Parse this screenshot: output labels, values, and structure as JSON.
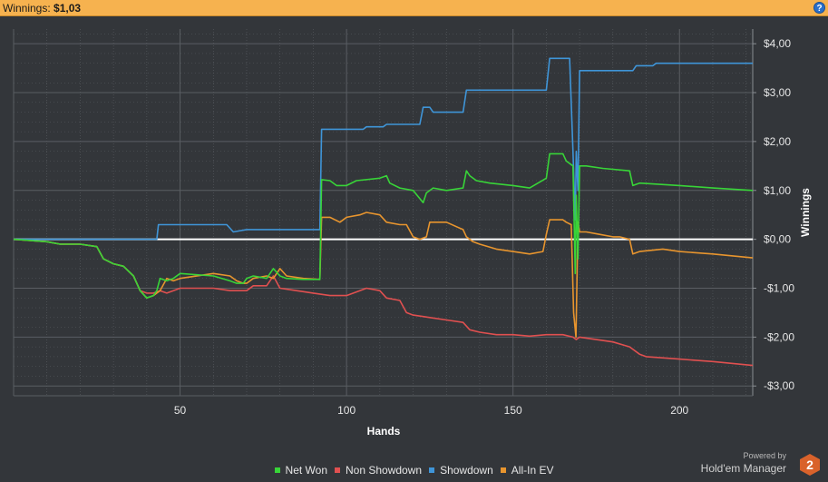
{
  "header": {
    "winnings_label": "Winnings:",
    "winnings_value": "$1,03",
    "help_icon": "question-icon",
    "help_label": "?"
  },
  "colors": {
    "net_won": "#38d438",
    "non_showdown": "#e05050",
    "showdown": "#3f95d8",
    "all_in_ev": "#e8952e",
    "zero_line": "#ffffff",
    "grid": "#5a5e63",
    "background": "#33363a"
  },
  "brand": {
    "powered_by": "Powered by",
    "name": "Hold'em Manager",
    "logo_icon": "holdem-manager-logo-icon",
    "logo_text": "2"
  },
  "chart_data": {
    "type": "line",
    "xlabel": "Hands",
    "ylabel": "Winnings",
    "xlim": [
      0,
      222
    ],
    "ylim": [
      -3.2,
      4.3
    ],
    "x_ticks": [
      50,
      100,
      150,
      200
    ],
    "x_tick_labels": [
      "50",
      "100",
      "150",
      "200"
    ],
    "y_ticks": [
      4,
      3,
      2,
      1,
      0,
      -1,
      -2,
      -3
    ],
    "y_tick_labels": [
      "$4,00",
      "$3,00",
      "$2,00",
      "$1,00",
      "$0,00",
      "-$1,00",
      "-$2,00",
      "-$3,00"
    ],
    "grid": true,
    "legend_position": "bottom-center",
    "series": [
      {
        "name": "Net Won",
        "x": [
          0,
          10,
          14,
          20,
          25,
          27,
          30,
          33,
          36,
          38,
          40,
          42,
          43,
          44,
          46,
          48,
          50,
          60,
          65,
          67,
          69,
          70,
          72,
          76,
          78,
          80,
          82,
          87,
          92,
          92.5,
          95,
          97,
          100,
          103,
          110,
          112,
          113,
          116,
          120,
          123,
          124,
          126,
          130,
          135,
          136,
          137,
          139,
          143,
          150,
          155,
          160,
          161,
          165,
          166,
          168,
          168.7,
          169,
          169.5,
          170,
          172,
          177,
          185,
          186,
          188,
          200,
          210,
          222
        ],
        "y": [
          0,
          -0.05,
          -0.1,
          -0.1,
          -0.15,
          -0.4,
          -0.5,
          -0.55,
          -0.75,
          -1.05,
          -1.2,
          -1.15,
          -1.05,
          -0.8,
          -0.85,
          -0.8,
          -0.7,
          -0.75,
          -0.85,
          -0.9,
          -0.9,
          -0.8,
          -0.75,
          -0.8,
          -0.6,
          -0.75,
          -0.8,
          -0.82,
          -0.82,
          1.22,
          1.2,
          1.1,
          1.1,
          1.2,
          1.25,
          1.3,
          1.15,
          1.05,
          1.0,
          0.75,
          0.95,
          1.05,
          1.0,
          1.05,
          1.4,
          1.3,
          1.2,
          1.15,
          1.1,
          1.05,
          1.25,
          1.75,
          1.75,
          1.6,
          1.5,
          -0.7,
          0.9,
          -0.4,
          1.5,
          1.5,
          1.45,
          1.4,
          1.1,
          1.15,
          1.1,
          1.05,
          1.0
        ]
      },
      {
        "name": "Non Showdown",
        "x": [
          0,
          10,
          14,
          20,
          25,
          27,
          30,
          33,
          36,
          38,
          40,
          42,
          44,
          46,
          48,
          50,
          60,
          65,
          70,
          72,
          76,
          78,
          80,
          85,
          90,
          95,
          100,
          104,
          106,
          110,
          112,
          116,
          118,
          120,
          123,
          125,
          130,
          135,
          137,
          140,
          145,
          150,
          155,
          160,
          165,
          168,
          169,
          170,
          175,
          180,
          185,
          188,
          190,
          200,
          210,
          222
        ],
        "y": [
          0,
          -0.05,
          -0.1,
          -0.1,
          -0.15,
          -0.4,
          -0.5,
          -0.55,
          -0.75,
          -1.05,
          -1.1,
          -1.1,
          -1.05,
          -1.1,
          -1.05,
          -1.0,
          -1.0,
          -1.05,
          -1.05,
          -0.95,
          -0.95,
          -0.75,
          -1.0,
          -1.05,
          -1.1,
          -1.15,
          -1.15,
          -1.05,
          -1.0,
          -1.05,
          -1.2,
          -1.25,
          -1.5,
          -1.55,
          -1.58,
          -1.6,
          -1.65,
          -1.7,
          -1.85,
          -1.9,
          -1.95,
          -1.95,
          -1.98,
          -1.95,
          -1.95,
          -2.0,
          -2.05,
          -2.0,
          -2.05,
          -2.1,
          -2.2,
          -2.35,
          -2.4,
          -2.45,
          -2.5,
          -2.58
        ]
      },
      {
        "name": "Showdown",
        "x": [
          0,
          43,
          43.5,
          50,
          64,
          66,
          70,
          92,
          92.5,
          105,
          106,
          111,
          112,
          122,
          123,
          125,
          126,
          135,
          136,
          160,
          161,
          167,
          168,
          168.7,
          169,
          169.5,
          170,
          186,
          187,
          192,
          193,
          222
        ],
        "y": [
          0,
          0,
          0.3,
          0.3,
          0.3,
          0.15,
          0.2,
          0.2,
          2.25,
          2.25,
          2.3,
          2.3,
          2.35,
          2.35,
          2.7,
          2.7,
          2.6,
          2.6,
          3.05,
          3.05,
          3.7,
          3.7,
          1.8,
          0.4,
          1.8,
          1.0,
          3.45,
          3.45,
          3.55,
          3.55,
          3.6,
          3.6
        ]
      },
      {
        "name": "All-In EV",
        "x": [
          0,
          10,
          14,
          20,
          25,
          27,
          30,
          33,
          36,
          38,
          40,
          42,
          44,
          46,
          48,
          50,
          60,
          65,
          67,
          69,
          70,
          72,
          76,
          78,
          80,
          82,
          87,
          92,
          92.5,
          95,
          98,
          100,
          104,
          106,
          110,
          112,
          116,
          118,
          120,
          122,
          124,
          125,
          130,
          135,
          136,
          138,
          140,
          145,
          150,
          155,
          159,
          160,
          161,
          165,
          166,
          167.5,
          168.2,
          168.9,
          169.5,
          170,
          172,
          176,
          180,
          182,
          185,
          186,
          188,
          195,
          200,
          210,
          222
        ],
        "y": [
          0,
          -0.05,
          -0.1,
          -0.1,
          -0.15,
          -0.4,
          -0.5,
          -0.55,
          -0.75,
          -1.05,
          -1.2,
          -1.15,
          -1.05,
          -0.8,
          -0.85,
          -0.8,
          -0.7,
          -0.75,
          -0.85,
          -0.9,
          -0.9,
          -0.8,
          -0.75,
          -0.8,
          -0.6,
          -0.75,
          -0.8,
          -0.82,
          0.45,
          0.45,
          0.35,
          0.45,
          0.5,
          0.55,
          0.5,
          0.35,
          0.3,
          0.3,
          0.05,
          0.0,
          0.05,
          0.35,
          0.35,
          0.2,
          0.05,
          -0.05,
          -0.1,
          -0.2,
          -0.25,
          -0.3,
          -0.25,
          0.1,
          0.4,
          0.4,
          0.35,
          0.3,
          -1.5,
          -2.0,
          0.35,
          0.15,
          0.15,
          0.1,
          0.05,
          0.05,
          0.0,
          -0.3,
          -0.25,
          -0.2,
          -0.25,
          -0.3,
          -0.38
        ]
      }
    ]
  }
}
